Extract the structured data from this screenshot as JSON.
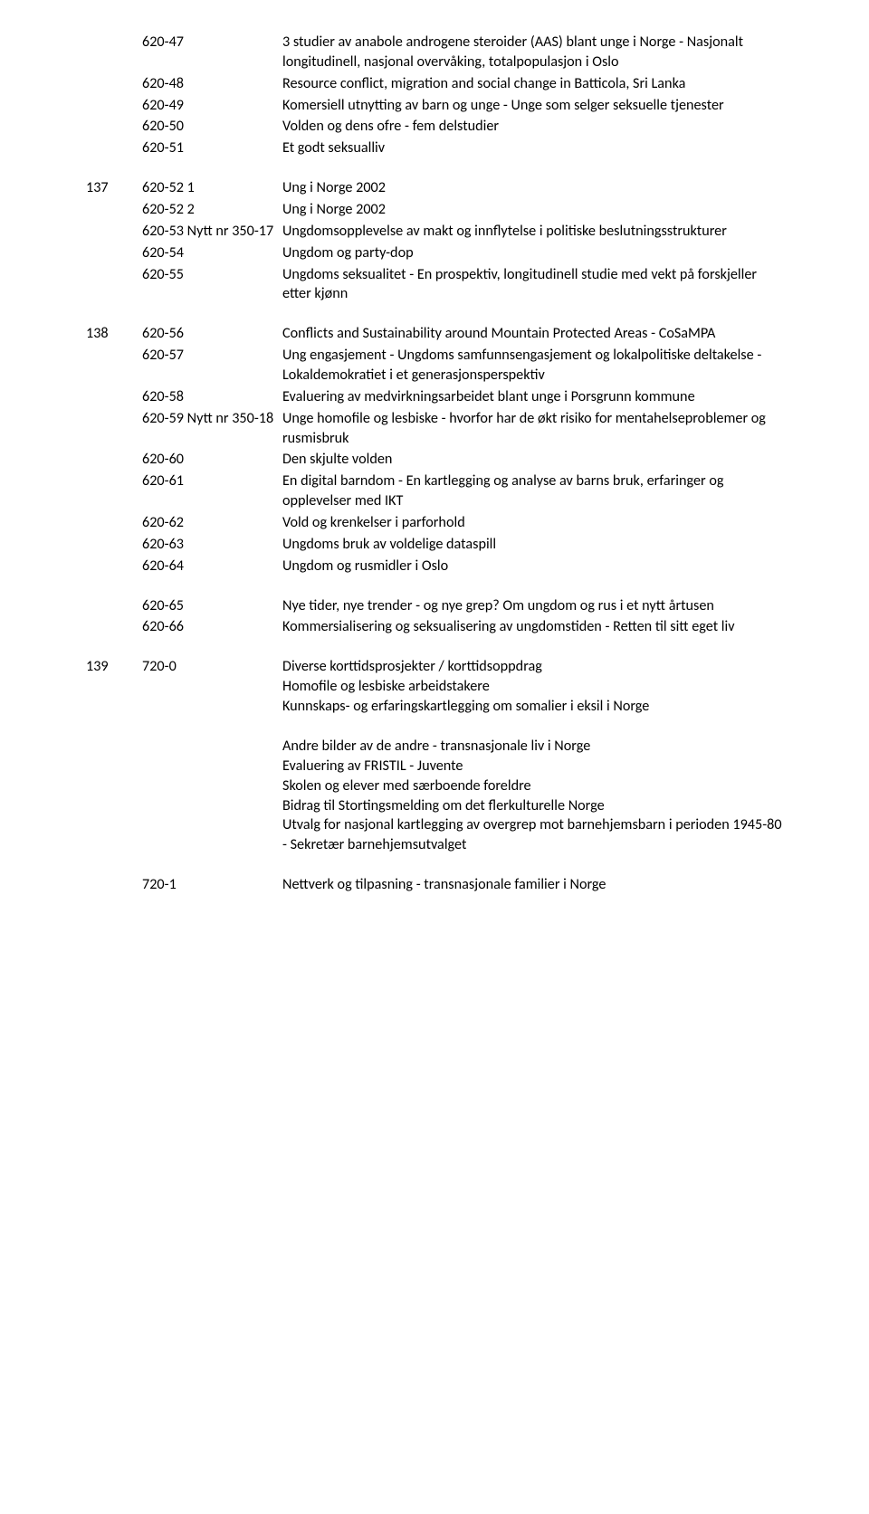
{
  "groups": [
    {
      "marker": "",
      "rows": [
        {
          "code": "620-47",
          "text": "3 studier av anabole androgene steroider (AAS) blant unge i Norge - Nasjonalt longitudinell, nasjonal overvåking, totalpopulasjon i Oslo"
        },
        {
          "code": "620-48",
          "text": "Resource conflict, migration and social change in Batticola, Sri Lanka"
        },
        {
          "code": "620-49",
          "text": "Komersiell utnytting av barn og unge - Unge som selger seksuelle tjenester"
        },
        {
          "code": "620-50",
          "text": "Volden og dens ofre - fem delstudier"
        },
        {
          "code": "620-51",
          "text": "Et godt seksualliv"
        }
      ]
    },
    {
      "marker": "137",
      "rows": [
        {
          "code": "620-52 1",
          "text": "Ung i Norge 2002"
        },
        {
          "code": "620-52 2",
          "text": "Ung i Norge 2002"
        },
        {
          "code": "620-53 Nytt nr 350-17",
          "text": "Ungdomsopplevelse av makt og innflytelse i politiske beslutningsstrukturer"
        },
        {
          "code": "620-54",
          "text": "Ungdom og party-dop"
        },
        {
          "code": "620-55",
          "text": "Ungdoms seksualitet - En prospektiv, longitudinell studie med vekt på forskjeller etter kjønn"
        }
      ]
    },
    {
      "marker": "138",
      "rows": [
        {
          "code": "620-56",
          "text": "Conflicts and Sustainability around Mountain Protected Areas - CoSaMPA"
        },
        {
          "code": "620-57",
          "text": "Ung engasjement - Ungdoms samfunnsengasjement og lokalpolitiske deltakelse - Lokaldemokratiet i et generasjonsperspektiv"
        },
        {
          "code": "620-58",
          "text": "Evaluering av medvirkningsarbeidet blant unge i Porsgrunn kommune"
        },
        {
          "code": "620-59 Nytt nr 350-18",
          "text": "Unge homofile og lesbiske - hvorfor har de økt risiko for mentahelseproblemer og rusmisbruk"
        },
        {
          "code": "620-60",
          "text": "Den skjulte volden"
        },
        {
          "code": "620-61",
          "text": "En digital barndom - En kartlegging og analyse av barns bruk, erfaringer og opplevelser med IKT"
        },
        {
          "code": "620-62",
          "text": "Vold og krenkelser i parforhold"
        },
        {
          "code": "620-63",
          "text": "Ungdoms bruk av voldelige dataspill"
        },
        {
          "code": "620-64",
          "text": "Ungdom og rusmidler i Oslo"
        }
      ]
    },
    {
      "marker": "",
      "rows": [
        {
          "code": "620-65",
          "text": "Nye tider, nye trender - og nye grep? Om ungdom og rus i et nytt årtusen"
        },
        {
          "code": "620-66",
          "text": "Kommersialisering og seksualisering av ungdomstiden - Retten til sitt eget liv"
        }
      ]
    },
    {
      "marker": "139",
      "rows": [
        {
          "code": "720-0",
          "text": "Diverse korttidsprosjekter / korttidsoppdrag\nHomofile og lesbiske arbeidstakere\nKunnskaps- og erfaringskartlegging om somalier i eksil i Norge"
        }
      ]
    },
    {
      "marker": "",
      "rows": [
        {
          "code": "",
          "text": "Andre bilder av de andre - transnasjonale liv i Norge\nEvaluering av FRISTIL - Juvente\nSkolen og elever med særboende foreldre\nBidrag til Stortingsmelding om det flerkulturelle Norge\nUtvalg for nasjonal kartlegging av overgrep mot barnehjemsbarn i perioden 1945-80 - Sekretær barnehjemsutvalget"
        }
      ]
    },
    {
      "marker": "",
      "rows": [
        {
          "code": "720-1",
          "text": "Nettverk og tilpasning - transnasjonale familier i Norge"
        }
      ]
    }
  ]
}
